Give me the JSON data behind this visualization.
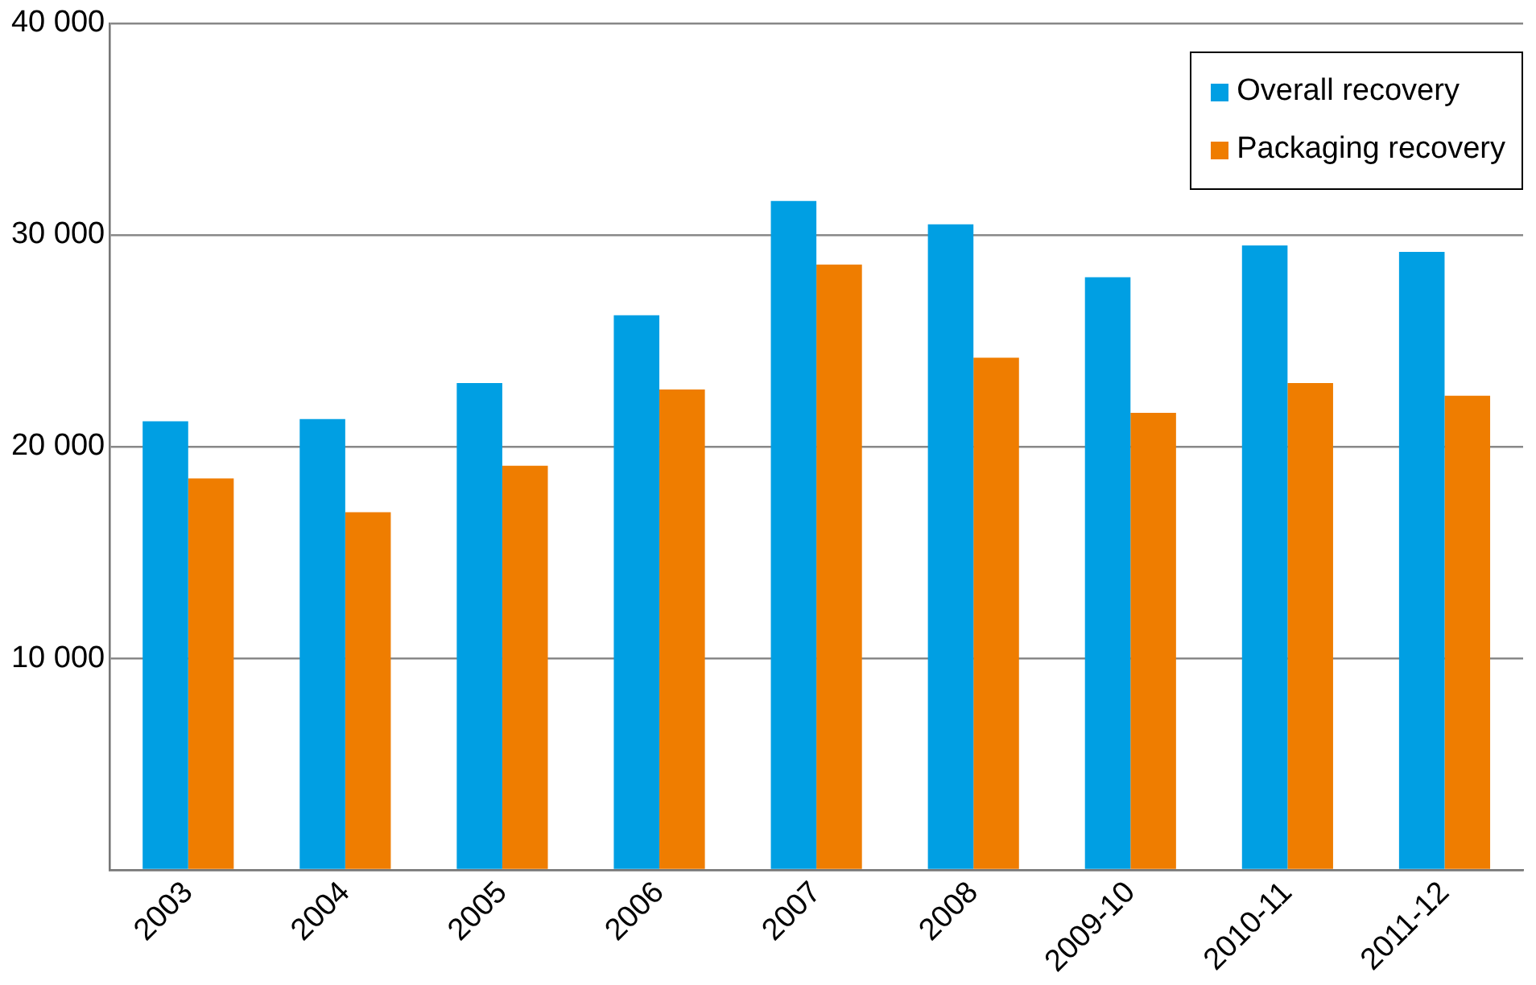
{
  "chart_data": {
    "type": "bar",
    "categories": [
      "2003",
      "2004",
      "2005",
      "2006",
      "2007",
      "2008",
      "2009-10",
      "2010-11",
      "2011-12"
    ],
    "series": [
      {
        "name": "Overall recovery",
        "color": "#009fe3",
        "values": [
          21200,
          21300,
          23000,
          26200,
          31600,
          30500,
          28000,
          29500,
          29200
        ]
      },
      {
        "name": "Packaging recovery",
        "color": "#ef7d00",
        "values": [
          18500,
          16900,
          19100,
          22700,
          28600,
          24200,
          21600,
          23000,
          22400
        ]
      }
    ],
    "ylim": [
      0,
      40000
    ],
    "yticks": [
      {
        "value": 0,
        "label": null
      },
      {
        "value": 10000,
        "label": "10 000"
      },
      {
        "value": 20000,
        "label": "20 000"
      },
      {
        "value": 30000,
        "label": "30 000"
      },
      {
        "value": 40000,
        "label": "40 000"
      }
    ],
    "grid": "y",
    "legend": "top right"
  }
}
